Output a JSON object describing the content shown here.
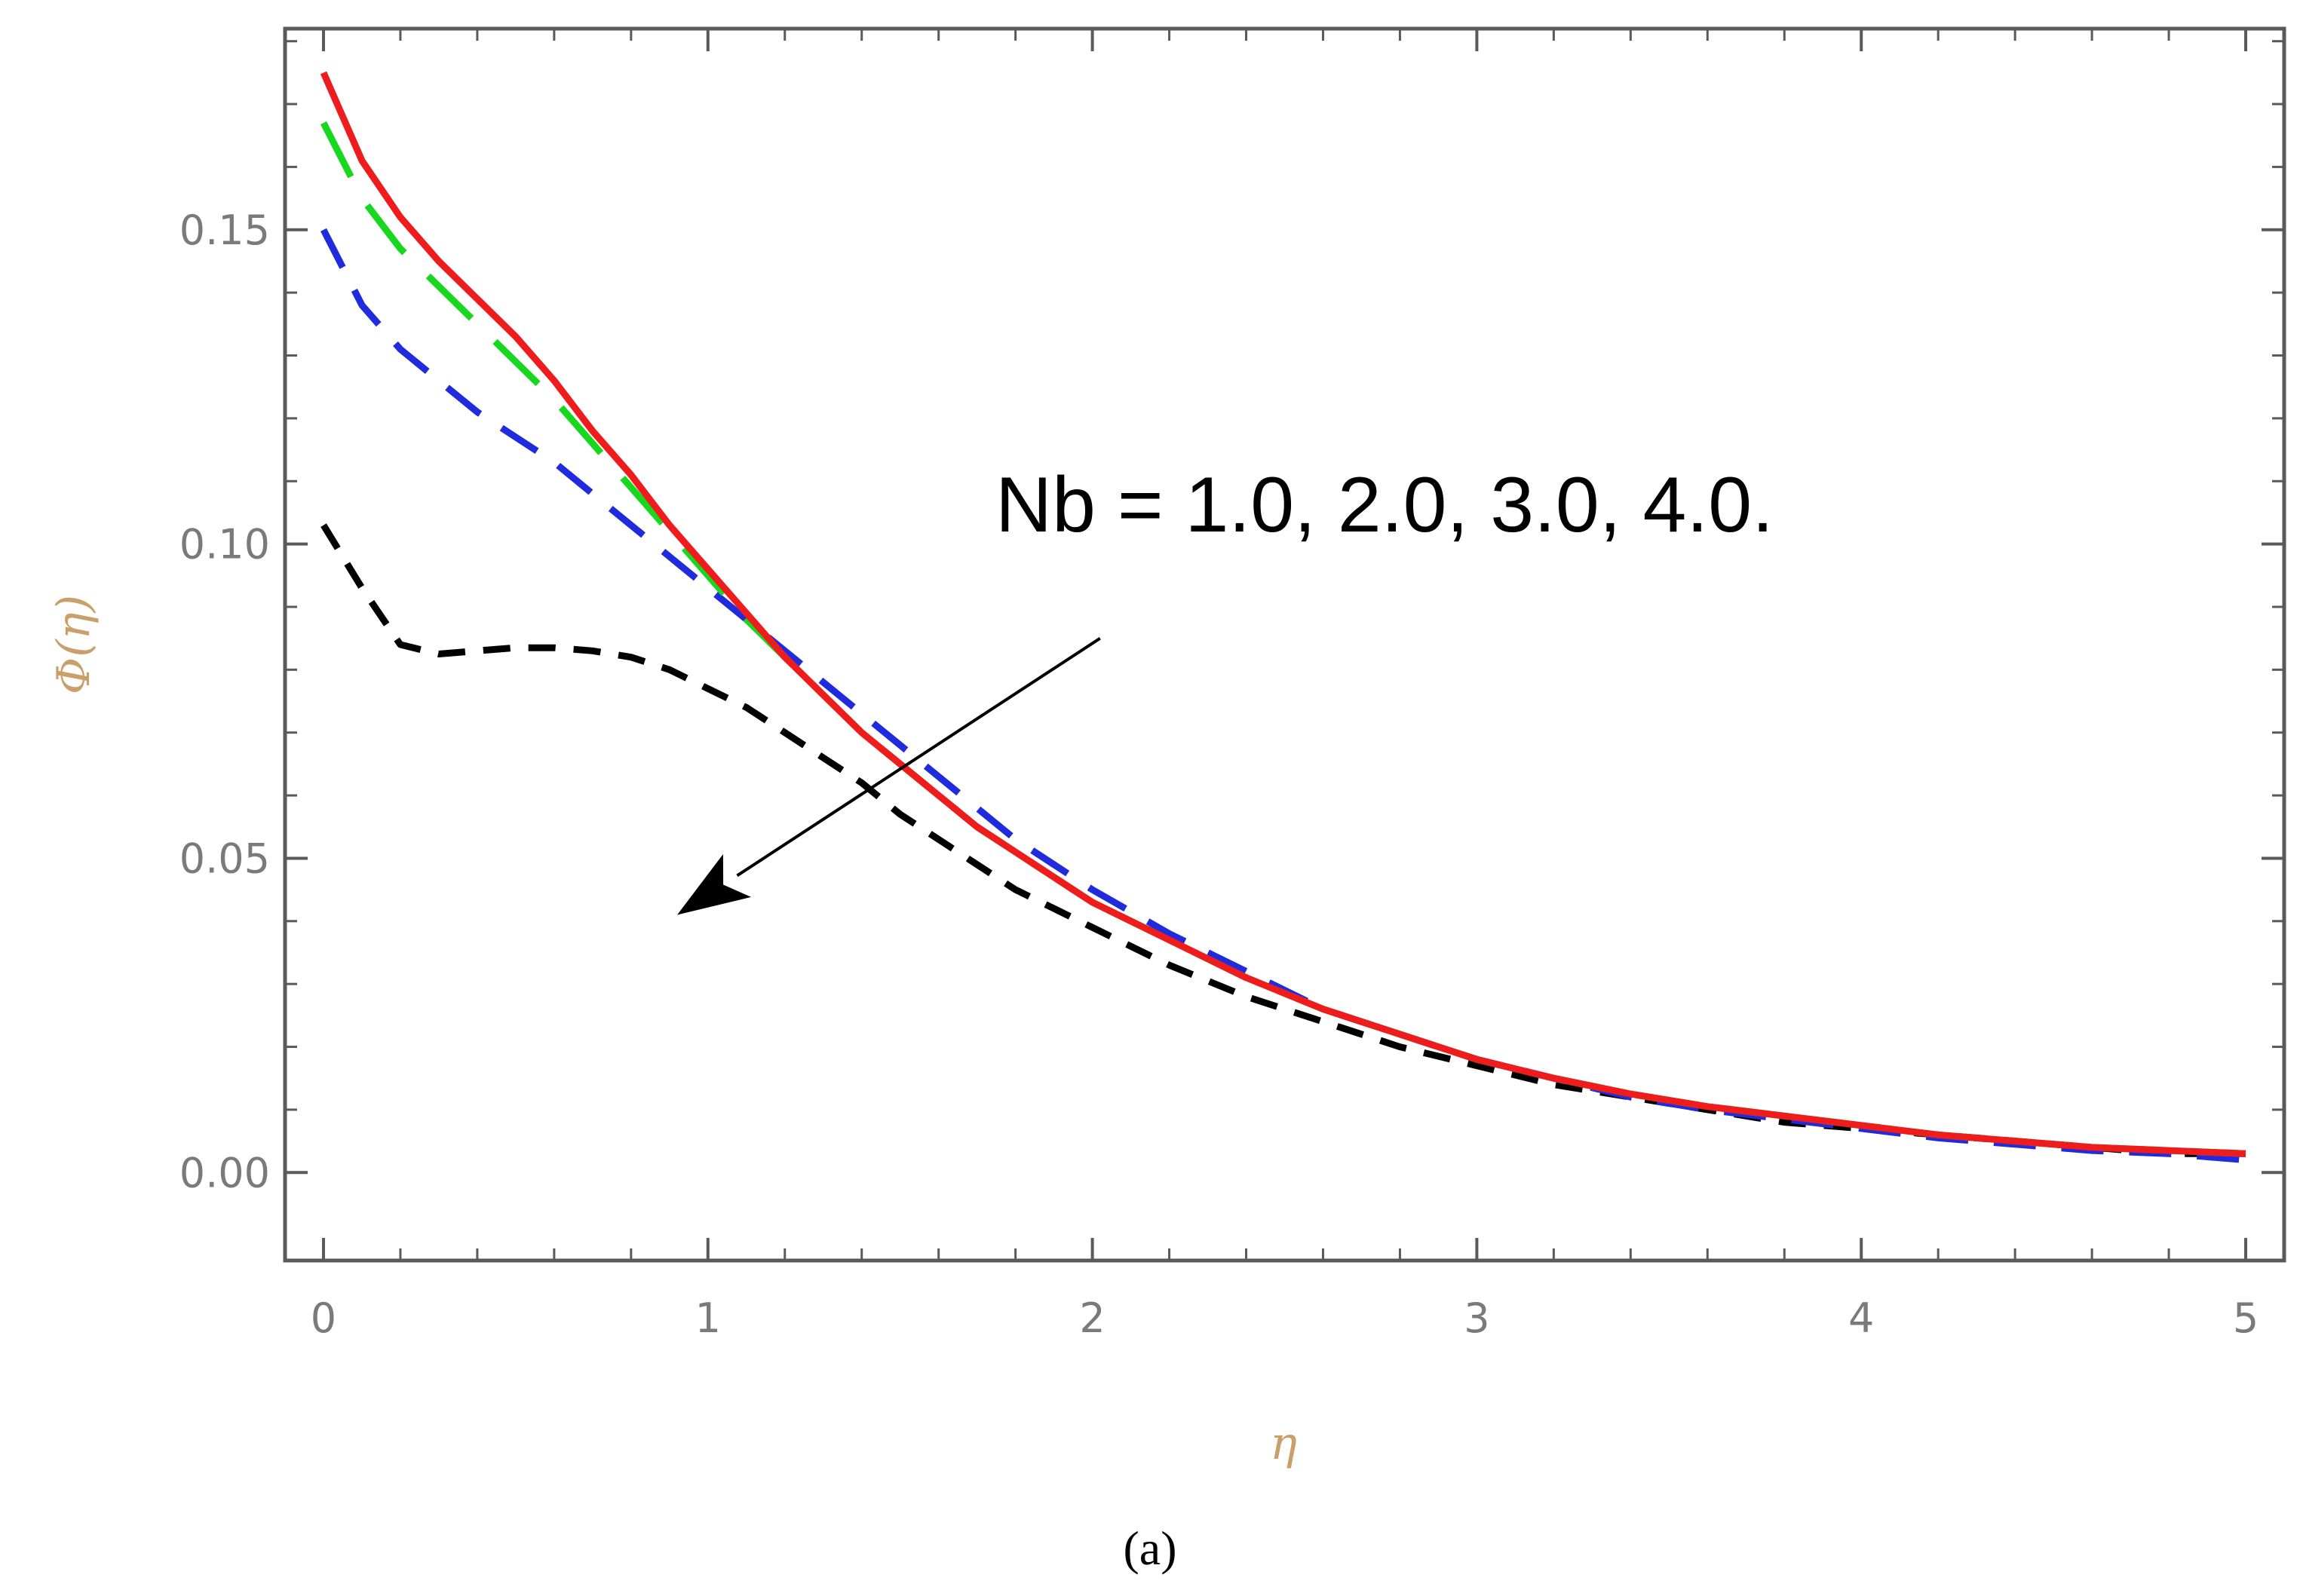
{
  "chart_data": {
    "type": "line",
    "title": "",
    "xlabel": "η",
    "ylabel": "Φ(η)",
    "xlim": [
      -0.1,
      5.1
    ],
    "ylim": [
      -0.014,
      0.182
    ],
    "xticks": [
      0,
      1,
      2,
      3,
      4,
      5
    ],
    "xtick_labels": [
      "0",
      "1",
      "2",
      "3",
      "4",
      "5"
    ],
    "yticks": [
      0.0,
      0.05,
      0.1,
      0.15
    ],
    "ytick_labels": [
      "0.00",
      "0.05",
      "0.10",
      "0.15"
    ],
    "grid": false,
    "legend": "none",
    "annotation": "Nb = 1.0, 2.0, 3.0, 4.0.",
    "caption_text": "(a)",
    "arrow": {
      "from": [
        2.02,
        0.085
      ],
      "to": [
        0.92,
        0.041
      ]
    },
    "x": [
      0,
      0.1,
      0.2,
      0.3,
      0.4,
      0.5,
      0.6,
      0.7,
      0.8,
      0.9,
      1.0,
      1.1,
      1.2,
      1.3,
      1.4,
      1.5,
      1.6,
      1.7,
      1.8,
      1.9,
      2.0,
      2.2,
      2.4,
      2.6,
      2.8,
      3.0,
      3.2,
      3.4,
      3.6,
      3.8,
      4.0,
      4.2,
      4.4,
      4.6,
      4.8,
      5.0
    ],
    "series": [
      {
        "color": "#000000",
        "dash": "short",
        "values": [
          0.103,
          0.093,
          0.084,
          0.0825,
          0.083,
          0.0835,
          0.0835,
          0.083,
          0.082,
          0.08,
          0.077,
          0.074,
          0.07,
          0.066,
          0.062,
          0.057,
          0.053,
          0.049,
          0.045,
          0.042,
          0.039,
          0.033,
          0.028,
          0.024,
          0.02,
          0.017,
          0.014,
          0.012,
          0.01,
          0.008,
          0.007,
          0.006,
          0.005,
          0.004,
          0.003,
          0.003
        ]
      },
      {
        "color": "#1f2bdc",
        "dash": "medium",
        "values": [
          0.15,
          0.138,
          0.131,
          0.126,
          0.121,
          0.117,
          0.113,
          0.108,
          0.103,
          0.098,
          0.093,
          0.088,
          0.083,
          0.078,
          0.073,
          0.068,
          0.063,
          0.058,
          0.053,
          0.049,
          0.045,
          0.038,
          0.032,
          0.026,
          0.022,
          0.018,
          0.015,
          0.012,
          0.01,
          0.0085,
          0.007,
          0.0055,
          0.0045,
          0.0035,
          0.003,
          0.002
        ]
      },
      {
        "color": "#17d81f",
        "dash": "long",
        "values": [
          0.167,
          0.155,
          0.147,
          0.141,
          0.135,
          0.129,
          0.123,
          0.116,
          0.109,
          0.102,
          0.095,
          0.088,
          0.082,
          0.076,
          0.07,
          0.065,
          0.06,
          0.055,
          0.051,
          0.047,
          0.043,
          0.037,
          0.031,
          0.026,
          0.022,
          0.018,
          0.015,
          0.0125,
          0.0105,
          0.009,
          0.0075,
          0.006,
          0.005,
          0.004,
          0.0035,
          0.003
        ]
      },
      {
        "color": "#ee1c1c",
        "dash": "solid",
        "values": [
          0.175,
          0.161,
          0.152,
          0.145,
          0.139,
          0.133,
          0.126,
          0.118,
          0.111,
          0.103,
          0.096,
          0.089,
          0.082,
          0.076,
          0.07,
          0.065,
          0.06,
          0.055,
          0.051,
          0.047,
          0.043,
          0.037,
          0.031,
          0.026,
          0.022,
          0.018,
          0.015,
          0.0125,
          0.0105,
          0.009,
          0.0075,
          0.006,
          0.005,
          0.004,
          0.0035,
          0.003
        ]
      }
    ]
  }
}
